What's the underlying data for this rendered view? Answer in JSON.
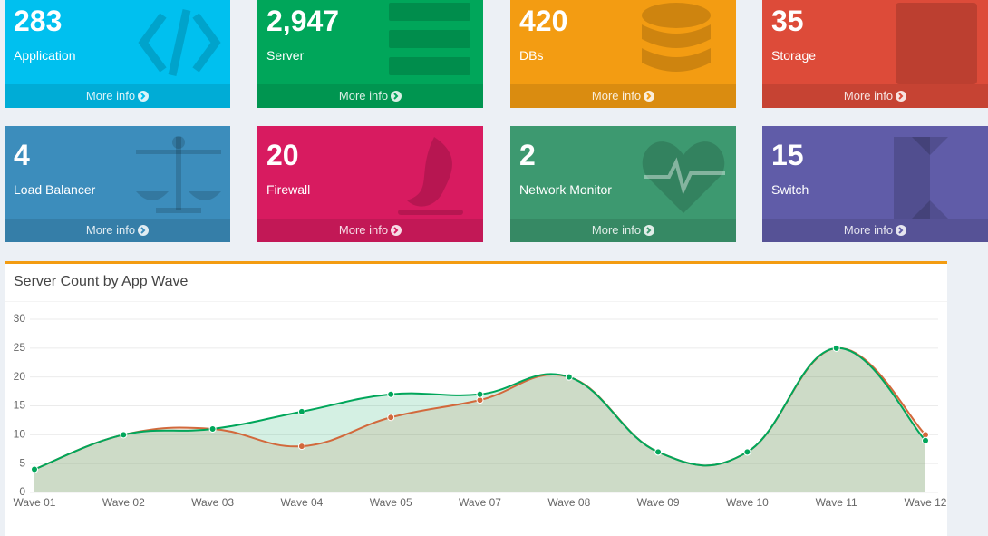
{
  "boxes": [
    {
      "count": 283,
      "label": "Application",
      "link": "More info",
      "color": "#00c0ef"
    },
    {
      "count": "2,947",
      "label": "Server",
      "link": "More info",
      "color": "#00a65a"
    },
    {
      "count": 420,
      "label": "DBs",
      "link": "More info",
      "color": "#f39c12"
    },
    {
      "count": 35,
      "label": "Storage",
      "link": "More info",
      "color": "#dd4b39"
    },
    {
      "count": 4,
      "label": "Load Balancer",
      "link": "More info",
      "color": "#3c8dbc"
    },
    {
      "count": 20,
      "label": "Firewall",
      "link": "More info",
      "color": "#d81b60"
    },
    {
      "count": 2,
      "label": "Network Monitor",
      "link": "More info",
      "color": "#3d9970"
    },
    {
      "count": 15,
      "label": "Switch",
      "link": "More info",
      "color": "#605ca8"
    }
  ],
  "chart_data": {
    "type": "line",
    "title": "Server Count by App Wave",
    "categories": [
      "Wave 01",
      "Wave 02",
      "Wave 03",
      "Wave 04",
      "Wave 05",
      "Wave 07",
      "Wave 08",
      "Wave 09",
      "Wave 10",
      "Wave 11",
      "Wave 12"
    ],
    "series": [
      {
        "color": "#d2693c",
        "values": [
          4,
          10,
          11,
          8,
          13,
          16,
          20,
          7,
          7,
          25,
          10
        ]
      },
      {
        "color": "#00a65a",
        "values": [
          4,
          10,
          11,
          14,
          17,
          17,
          20,
          7,
          7,
          25,
          9
        ]
      }
    ],
    "ylim": [
      0,
      30
    ],
    "yticks": [
      0,
      5,
      10,
      15,
      20,
      25,
      30
    ],
    "grid": true,
    "area": true
  }
}
